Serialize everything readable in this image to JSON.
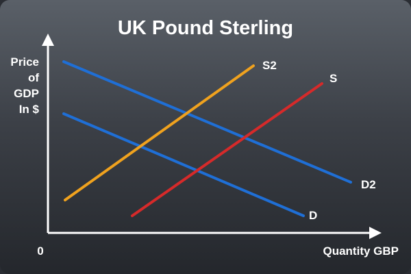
{
  "title": "UK Pound Sterling",
  "axes": {
    "y_label_lines": [
      "Price",
      "of",
      "GDP",
      "In $"
    ],
    "x_label": "Quantity GBP",
    "origin_label": "0"
  },
  "curves": [
    {
      "id": "D2",
      "label": "D2",
      "kind": "demand",
      "color": "#1f6fd6"
    },
    {
      "id": "D",
      "label": "D",
      "kind": "demand",
      "color": "#1f6fd6"
    },
    {
      "id": "S2",
      "label": "S2",
      "kind": "supply",
      "color": "#f0a21e"
    },
    {
      "id": "S",
      "label": "S",
      "kind": "supply",
      "color": "#d62a2a"
    }
  ],
  "colors": {
    "axis": "#ffffff",
    "background_top": "#5a6068",
    "background_bottom": "#24272c"
  }
}
